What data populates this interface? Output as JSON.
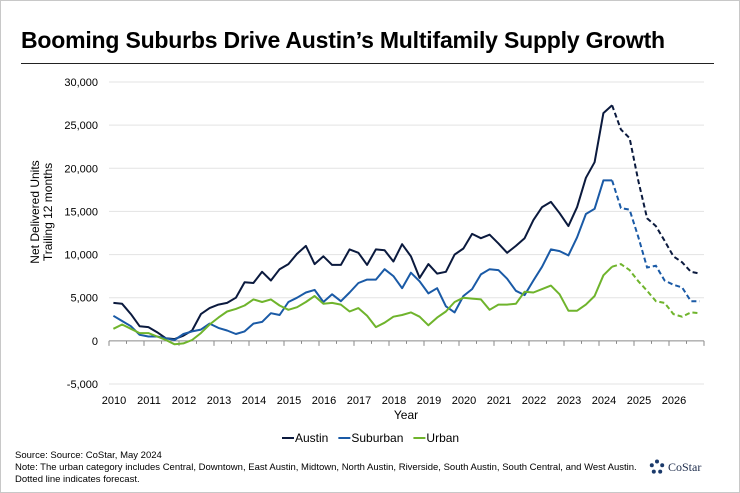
{
  "title": "Booming Suburbs Drive Austin’s Multifamily Supply Growth",
  "footer": {
    "source": "Source: Source: CoStar, May 2024",
    "note": "Note: The urban category includes Central, Downtown, East Austin, Midtown, North Austin, Riverside, South Austin, South Central, and West Austin. Dotted line indicates forecast."
  },
  "logo": {
    "text": "CoStar",
    "icon": "costar-star-icon"
  },
  "chart_data": {
    "type": "line",
    "title": "Booming Suburbs Drive Austin’s Multifamily Supply Growth",
    "xlabel": "Year",
    "ylabel": [
      "Net Delivered Units",
      "Trailing 12 months"
    ],
    "x_tick_labels": [
      "2010",
      "2011",
      "2012",
      "2013",
      "2014",
      "2015",
      "2016",
      "2017",
      "2018",
      "2019",
      "2020",
      "2021",
      "2022",
      "2023",
      "2024",
      "2025",
      "2026"
    ],
    "y_ticks": [
      -5000,
      0,
      5000,
      10000,
      15000,
      20000,
      25000,
      30000
    ],
    "y_tick_labels": [
      "-5,000",
      "0",
      "5,000",
      "10,000",
      "15,000",
      "20,000",
      "25,000",
      "30,000"
    ],
    "ylim": [
      -5000,
      30000
    ],
    "xlim": [
      2010,
      2027
    ],
    "x_frequency": "quarterly",
    "x_start": "2010 Q1",
    "x_end": "2026 Q4",
    "forecast_start": "2024 Q2",
    "grid": "horizontal",
    "legend_position": "bottom",
    "series": [
      {
        "name": "Austin",
        "color": "#0b1a3e",
        "values": [
          4400,
          4300,
          3100,
          1700,
          1600,
          1000,
          300,
          200,
          600,
          1200,
          3100,
          3800,
          4200,
          4400,
          5000,
          6800,
          6700,
          8000,
          7000,
          8300,
          8900,
          10100,
          11000,
          8900,
          9800,
          8800,
          8800,
          10600,
          10200,
          8800,
          10600,
          10500,
          9200,
          11200,
          9800,
          7300,
          8900,
          7800,
          8000,
          10000,
          10700,
          12400,
          11900,
          12300,
          11300,
          10200,
          11000,
          11900,
          14000,
          15500,
          16100,
          14800,
          13300,
          15500,
          18900,
          20700,
          26400,
          27300,
          24500,
          23500,
          18500,
          14200,
          13300,
          11600,
          9800,
          9100,
          8000,
          7800
        ]
      },
      {
        "name": "Suburban",
        "color": "#1a5aa6",
        "values": [
          2900,
          2300,
          1700,
          700,
          500,
          500,
          300,
          100,
          800,
          1100,
          1300,
          2000,
          1500,
          1200,
          800,
          1100,
          2000,
          2200,
          3200,
          3000,
          4500,
          5000,
          5600,
          5900,
          4500,
          5400,
          4600,
          5600,
          6700,
          7100,
          7100,
          8300,
          7500,
          6100,
          7900,
          6900,
          5500,
          6100,
          4000,
          3300,
          5200,
          6000,
          7700,
          8300,
          8200,
          7200,
          5800,
          5300,
          7000,
          8600,
          10600,
          10400,
          9900,
          12000,
          14700,
          15300,
          18600,
          18600,
          15400,
          15200,
          12000,
          8500,
          8700,
          7000,
          6500,
          6200,
          4600,
          4600
        ]
      },
      {
        "name": "Urban",
        "color": "#6fb42c",
        "values": [
          1400,
          1900,
          1400,
          900,
          900,
          500,
          100,
          -400,
          -300,
          100,
          900,
          1900,
          2700,
          3400,
          3700,
          4100,
          4800,
          4500,
          4800,
          4100,
          3600,
          3900,
          4500,
          5200,
          4300,
          4400,
          4200,
          3400,
          3800,
          2900,
          1600,
          2100,
          2800,
          3000,
          3300,
          2800,
          1800,
          2700,
          3400,
          4500,
          5000,
          4900,
          4800,
          3600,
          4200,
          4200,
          4300,
          5700,
          5600,
          6000,
          6400,
          5400,
          3500,
          3500,
          4200,
          5200,
          7600,
          8600,
          8900,
          8200,
          6900,
          5800,
          4600,
          4400,
          3100,
          2800,
          3300,
          3200
        ]
      }
    ]
  }
}
